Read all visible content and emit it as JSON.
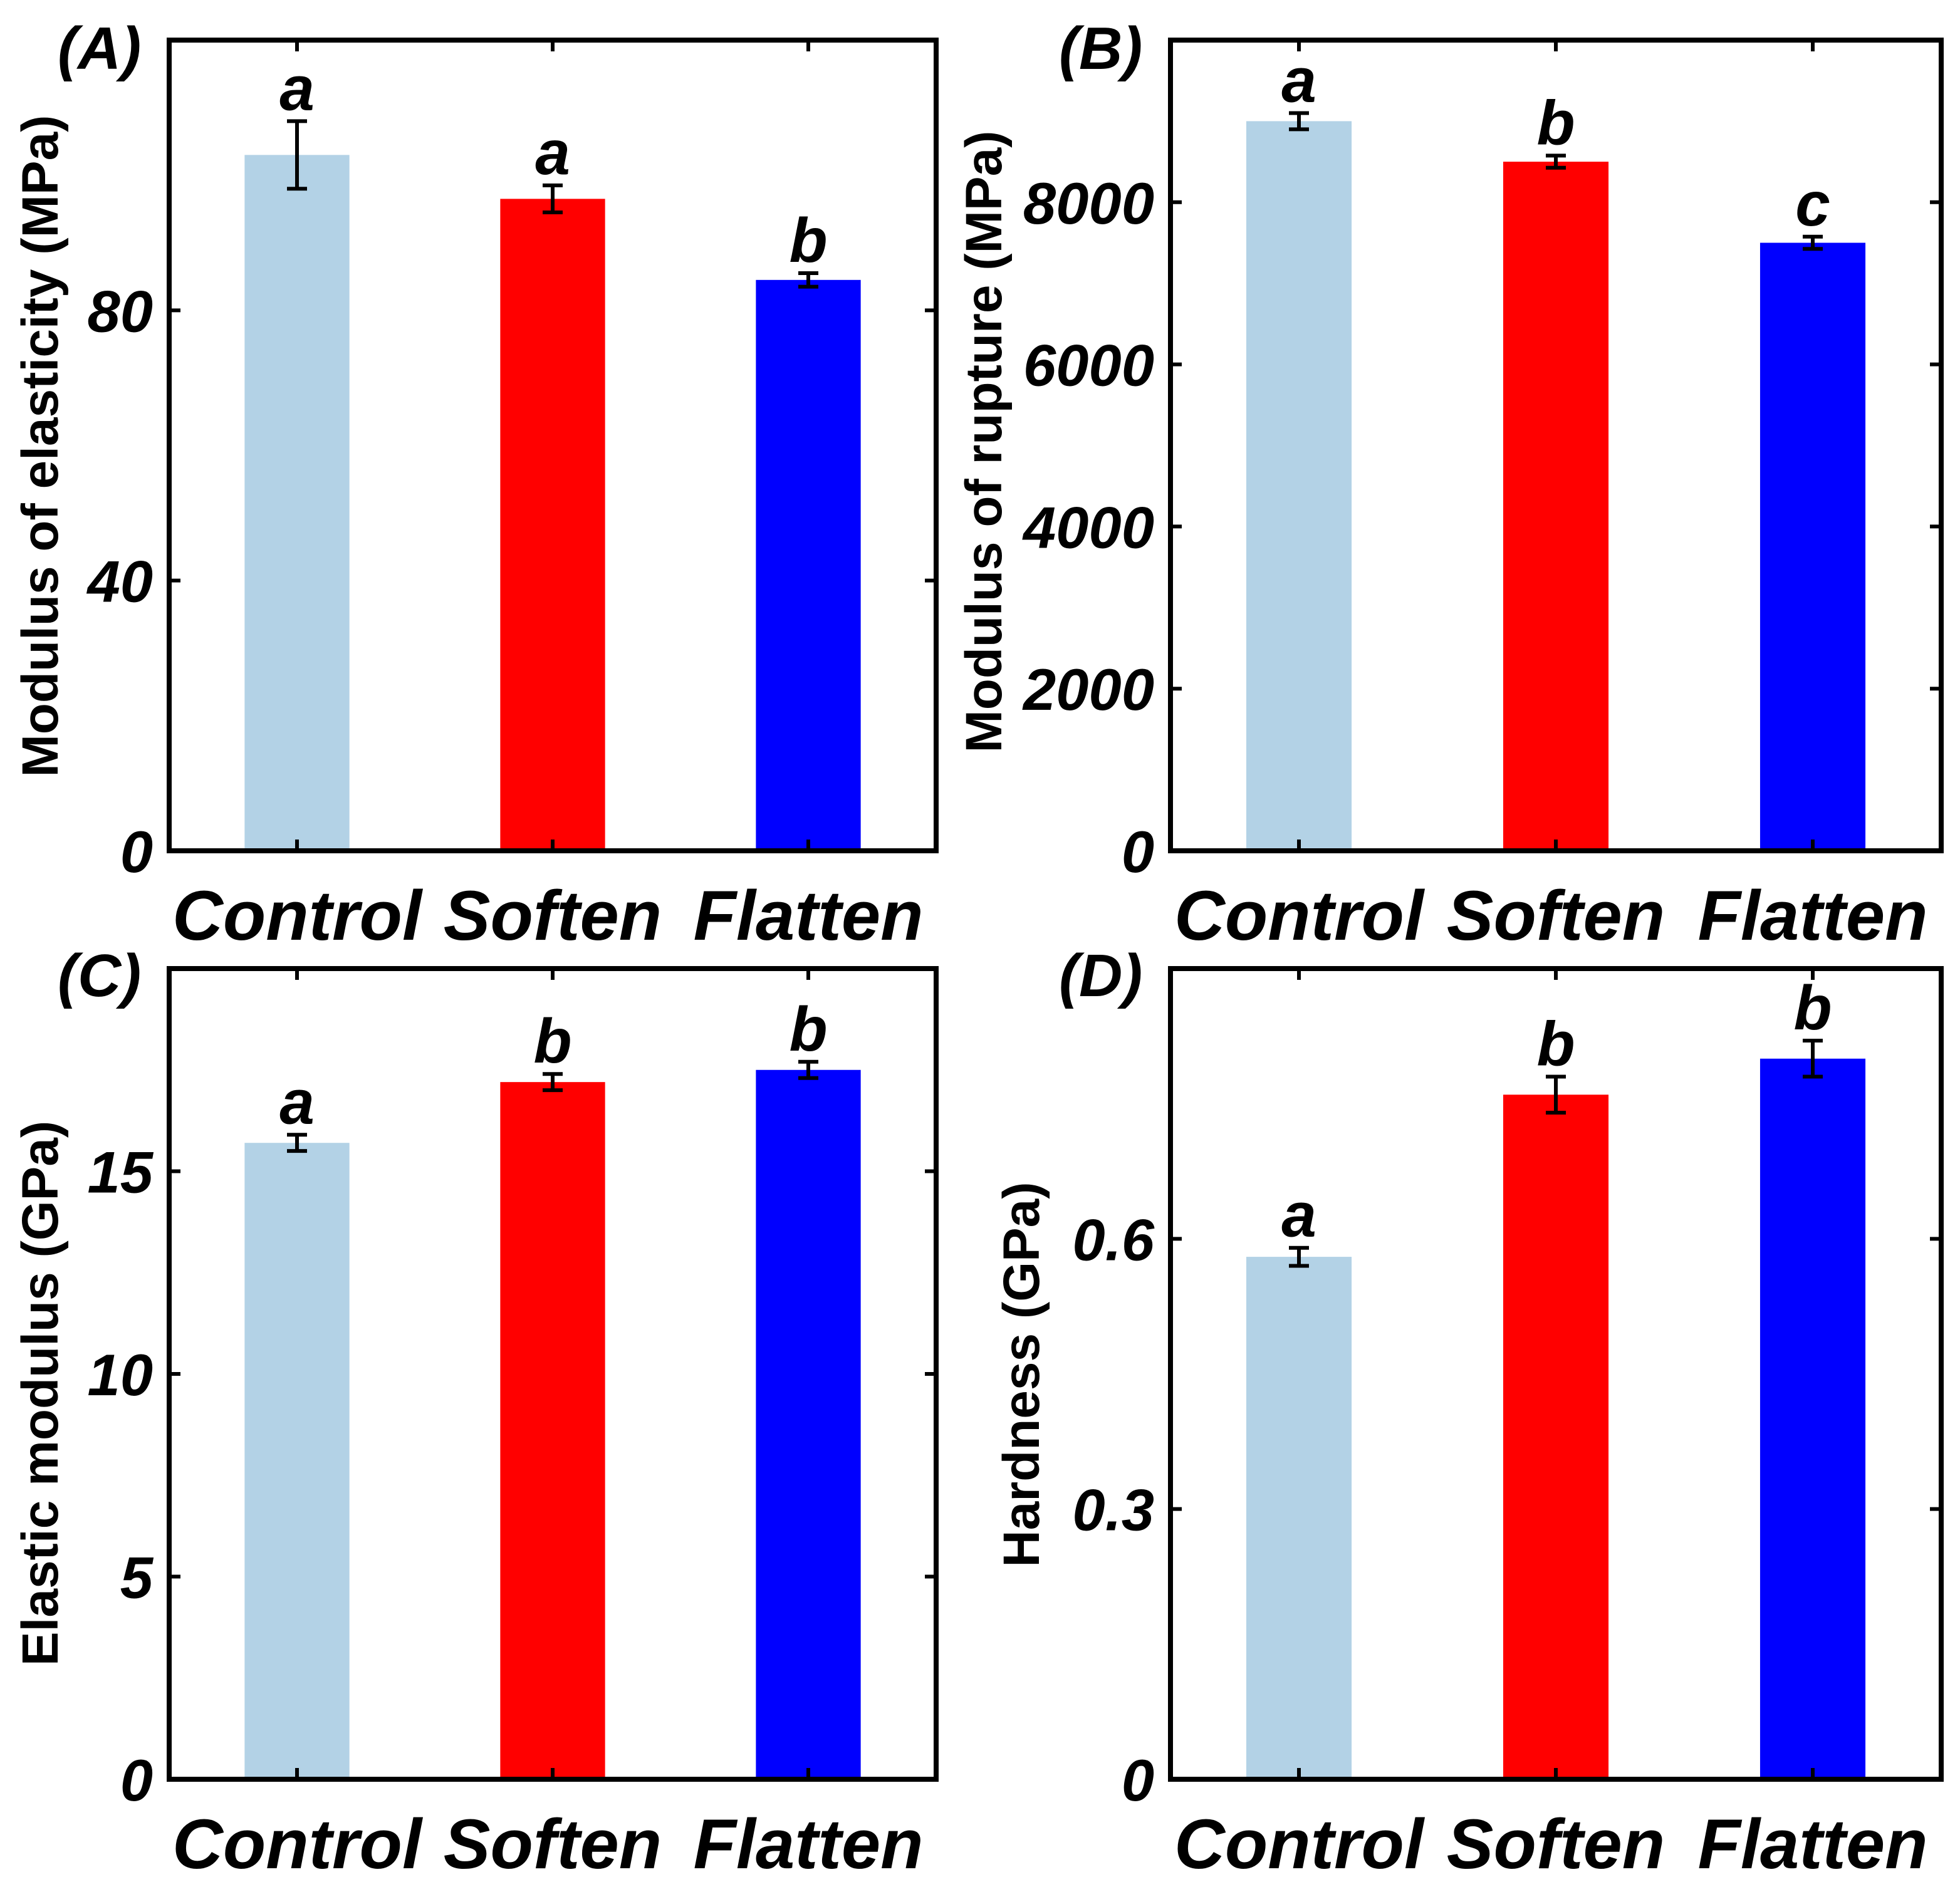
{
  "chart_data": [
    {
      "id": "A",
      "type": "bar",
      "panel_label": "(A)",
      "ylabel": "Modulus of elasticity (MPa)",
      "ylim": [
        0,
        120
      ],
      "yticks": [
        0,
        40,
        80
      ],
      "categories": [
        "Control",
        "Soften",
        "Flatten"
      ],
      "values": [
        103,
        96.5,
        84.5
      ],
      "errors": [
        5,
        2,
        1
      ],
      "significance": [
        "a",
        "a",
        "b"
      ],
      "colors": [
        "#b3d2e6",
        "#ff0000",
        "#0000ff"
      ]
    },
    {
      "id": "B",
      "type": "bar",
      "panel_label": "(B)",
      "ylabel": "Modulus of rupture (MPa)",
      "ylim": [
        0,
        10000
      ],
      "yticks": [
        0,
        2000,
        4000,
        6000,
        8000
      ],
      "categories": [
        "Control",
        "Soften",
        "Flatten"
      ],
      "values": [
        9000,
        8500,
        7500
      ],
      "errors": [
        100,
        75,
        75
      ],
      "significance": [
        "a",
        "b",
        "c"
      ],
      "colors": [
        "#b3d2e6",
        "#ff0000",
        "#0000ff"
      ]
    },
    {
      "id": "C",
      "type": "bar",
      "panel_label": "(C)",
      "ylabel": "Elastic modulus (GPa)",
      "ylim": [
        0,
        20
      ],
      "yticks": [
        0,
        5,
        10,
        15
      ],
      "categories": [
        "Control",
        "Soften",
        "Flatten"
      ],
      "values": [
        15.7,
        17.2,
        17.5
      ],
      "errors": [
        0.2,
        0.2,
        0.2
      ],
      "significance": [
        "a",
        "b",
        "b"
      ],
      "colors": [
        "#b3d2e6",
        "#ff0000",
        "#0000ff"
      ]
    },
    {
      "id": "D",
      "type": "bar",
      "panel_label": "(D)",
      "ylabel": "Hardness (GPa)",
      "ylim": [
        0,
        0.9
      ],
      "yticks": [
        0,
        0.3,
        0.6
      ],
      "ytick_labels": [
        "0",
        "0.3",
        "0.6"
      ],
      "categories": [
        "Control",
        "Soften",
        "Flatten"
      ],
      "values": [
        0.58,
        0.76,
        0.8
      ],
      "errors": [
        0.01,
        0.02,
        0.02
      ],
      "significance": [
        "a",
        "b",
        "b"
      ],
      "colors": [
        "#b3d2e6",
        "#ff0000",
        "#0000ff"
      ]
    }
  ]
}
